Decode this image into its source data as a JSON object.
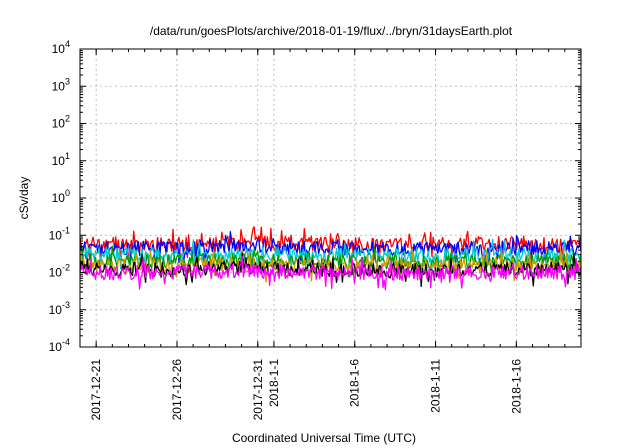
{
  "chart_data": {
    "type": "line",
    "title": "/data/run/goesPlots/archive/2018-01-19/flux/../bryn/31daysEarth.plot",
    "xlabel": "Coordinated Universal Time (UTC)",
    "ylabel": "cSv/day",
    "xscale": "time",
    "xlim": [
      "2017-12-20",
      "2018-01-20"
    ],
    "yscale": "log",
    "ylim": [
      0.0001,
      10000
    ],
    "grid": true,
    "legend": "none",
    "x_ticks": [
      {
        "date": "2017-12-21",
        "label": "2017-12-21"
      },
      {
        "date": "2017-12-26",
        "label": "2017-12-26"
      },
      {
        "date": "2017-12-31",
        "label": "2017-12-31"
      },
      {
        "date": "2018-01-01",
        "label": "2018-1-1"
      },
      {
        "date": "2018-01-06",
        "label": "2018-1-6"
      },
      {
        "date": "2018-01-11",
        "label": "2018-1-11"
      },
      {
        "date": "2018-01-16",
        "label": "2018-1-16"
      }
    ],
    "y_ticks": [
      {
        "value": 0.0001,
        "base": "10",
        "exp": "-4"
      },
      {
        "value": 0.001,
        "base": "10",
        "exp": "-3"
      },
      {
        "value": 0.01,
        "base": "10",
        "exp": "-2"
      },
      {
        "value": 0.1,
        "base": "10",
        "exp": "-1"
      },
      {
        "value": 1,
        "base": "10",
        "exp": "0"
      },
      {
        "value": 10,
        "base": "10",
        "exp": "1"
      },
      {
        "value": 100,
        "base": "10",
        "exp": "2"
      },
      {
        "value": 1000,
        "base": "10",
        "exp": "3"
      },
      {
        "value": 10000,
        "base": "10",
        "exp": "4"
      }
    ],
    "series": [
      {
        "color": "#ff0000",
        "samples": [
          {
            "date": "2017-12-20",
            "y": 0.06
          },
          {
            "date": "2017-12-25",
            "y": 0.055
          },
          {
            "date": "2017-12-30",
            "y": 0.065
          },
          {
            "date": "2018-01-04",
            "y": 0.06
          },
          {
            "date": "2018-01-09",
            "y": 0.055
          },
          {
            "date": "2018-01-14",
            "y": 0.06
          },
          {
            "date": "2018-01-20",
            "y": 0.06
          }
        ]
      },
      {
        "color": "#0000ff",
        "samples": [
          {
            "date": "2017-12-20",
            "y": 0.045
          },
          {
            "date": "2017-12-25",
            "y": 0.045
          },
          {
            "date": "2017-12-30",
            "y": 0.05
          },
          {
            "date": "2018-01-04",
            "y": 0.045
          },
          {
            "date": "2018-01-09",
            "y": 0.042
          },
          {
            "date": "2018-01-14",
            "y": 0.045
          },
          {
            "date": "2018-01-20",
            "y": 0.045
          }
        ]
      },
      {
        "color": "#00cccc",
        "samples": [
          {
            "date": "2017-12-20",
            "y": 0.03
          },
          {
            "date": "2017-12-25",
            "y": 0.03
          },
          {
            "date": "2017-12-30",
            "y": 0.032
          },
          {
            "date": "2018-01-04",
            "y": 0.03
          },
          {
            "date": "2018-01-09",
            "y": 0.028
          },
          {
            "date": "2018-01-14",
            "y": 0.03
          },
          {
            "date": "2018-01-20",
            "y": 0.03
          }
        ]
      },
      {
        "color": "#009900",
        "samples": [
          {
            "date": "2017-12-20",
            "y": 0.02
          },
          {
            "date": "2017-12-25",
            "y": 0.02
          },
          {
            "date": "2017-12-30",
            "y": 0.022
          },
          {
            "date": "2018-01-04",
            "y": 0.02
          },
          {
            "date": "2018-01-09",
            "y": 0.019
          },
          {
            "date": "2018-01-14",
            "y": 0.02
          },
          {
            "date": "2018-01-20",
            "y": 0.02
          }
        ]
      },
      {
        "color": "#cc9900",
        "samples": [
          {
            "date": "2017-12-20",
            "y": 0.015
          },
          {
            "date": "2017-12-25",
            "y": 0.015
          },
          {
            "date": "2017-12-30",
            "y": 0.016
          },
          {
            "date": "2018-01-04",
            "y": 0.015
          },
          {
            "date": "2018-01-09",
            "y": 0.014
          },
          {
            "date": "2018-01-14",
            "y": 0.015
          },
          {
            "date": "2018-01-20",
            "y": 0.015
          }
        ]
      },
      {
        "color": "#000000",
        "samples": [
          {
            "date": "2017-12-20",
            "y": 0.012
          },
          {
            "date": "2017-12-25",
            "y": 0.012
          },
          {
            "date": "2017-12-30",
            "y": 0.013
          },
          {
            "date": "2018-01-04",
            "y": 0.012
          },
          {
            "date": "2018-01-09",
            "y": 0.011
          },
          {
            "date": "2018-01-14",
            "y": 0.012
          },
          {
            "date": "2018-01-20",
            "y": 0.012
          }
        ]
      },
      {
        "color": "#ff00ff",
        "samples": [
          {
            "date": "2017-12-20",
            "y": 0.01
          },
          {
            "date": "2017-12-25",
            "y": 0.01
          },
          {
            "date": "2017-12-30",
            "y": 0.011
          },
          {
            "date": "2018-01-04",
            "y": 0.01
          },
          {
            "date": "2018-01-09",
            "y": 0.0095
          },
          {
            "date": "2018-01-14",
            "y": 0.01
          },
          {
            "date": "2018-01-20",
            "y": 0.01
          }
        ]
      }
    ]
  }
}
